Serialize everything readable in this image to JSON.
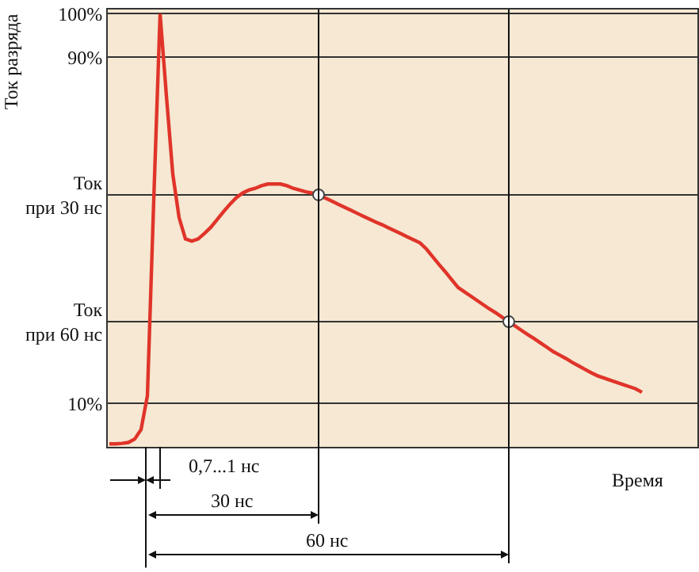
{
  "chart_data": {
    "type": "line",
    "ylabel": "Ток разряда",
    "xlabel": "Время",
    "categories": [
      null,
      null,
      null,
      null,
      null,
      null,
      null,
      null,
      null,
      null,
      null,
      null,
      null,
      null,
      null,
      null,
      null,
      null,
      null,
      null,
      null,
      null,
      null,
      null,
      null,
      null,
      null,
      null,
      null,
      null,
      null,
      null,
      null,
      null,
      null,
      null,
      null,
      null,
      null,
      null,
      null,
      null,
      null,
      null,
      null,
      null,
      null,
      null,
      null,
      null,
      null,
      null,
      null,
      null,
      null,
      null,
      null,
      null,
      null,
      null,
      null,
      null,
      null,
      null,
      null,
      null,
      null,
      null,
      null,
      null,
      null,
      null,
      null,
      null,
      null,
      null,
      null,
      null,
      null,
      null,
      null,
      null,
      null,
      null,
      null
    ],
    "series": [
      {
        "color": "#e0342a",
        "values": [
          0.7,
          0.7,
          0.8,
          1.0,
          1.8,
          4.0,
          11.8,
          57,
          100,
          81,
          63,
          52.9,
          48,
          47.5,
          48,
          49.3,
          50.7,
          52.5,
          54.3,
          56,
          57.5,
          58.6,
          59.3,
          59.7,
          60.3,
          60.7,
          60.7,
          60.7,
          60.3,
          59.7,
          59.3,
          58.9,
          58.6,
          58.2,
          57.5,
          56.8,
          56.1,
          55.4,
          54.7,
          54.0,
          53.3,
          52.6,
          51.9,
          51.3,
          50.6,
          49.9,
          49.2,
          48.5,
          47.8,
          47.1,
          45.7,
          43.9,
          42.1,
          40.4,
          38.6,
          36.8,
          35.8,
          34.8,
          33.8,
          32.8,
          31.8,
          30.9,
          29.9,
          28.9,
          27.9,
          26.9,
          25.9,
          25.0,
          24.0,
          23.0,
          22.0,
          21.2,
          20.4,
          19.5,
          18.7,
          17.9,
          17.1,
          16.4,
          15.9,
          15.4,
          14.9,
          14.4,
          13.9,
          13.4,
          12.6
        ]
      },
      {
        "type": "scatter",
        "marker": "circle",
        "color": "#ffffff",
        "values": [
          null,
          null,
          null,
          null,
          null,
          null,
          null,
          null,
          null,
          null,
          null,
          null,
          null,
          null,
          null,
          null,
          null,
          null,
          null,
          null,
          null,
          null,
          null,
          null,
          null,
          null,
          null,
          null,
          null,
          null,
          null,
          null,
          null,
          58.2,
          null,
          null,
          null,
          null,
          null,
          null,
          null,
          null,
          null,
          null,
          null,
          null,
          null,
          null,
          null,
          null,
          null,
          null,
          null,
          null,
          null,
          null,
          null,
          null,
          null,
          null,
          null,
          null,
          null,
          28.9,
          null,
          null,
          null,
          null,
          null,
          null,
          null,
          null,
          null,
          null,
          null,
          null,
          null,
          null,
          null,
          null,
          null,
          null,
          null,
          null,
          null
        ]
      }
    ],
    "ylim": [
      0,
      101
    ],
    "yticks": [
      {
        "value": 10,
        "label": "10%"
      },
      {
        "value": 28.9,
        "label": "Ток\nпри 60 нс"
      },
      {
        "value": 58.2,
        "label": "Ток\nпри 30 нс"
      },
      {
        "value": 90,
        "label": "90%"
      },
      {
        "value": 100,
        "label": "100%"
      }
    ],
    "grid": "y",
    "line_style": "solid",
    "annotations": [
      "0,7...1 нс",
      "30 нс",
      "60 нс"
    ]
  }
}
